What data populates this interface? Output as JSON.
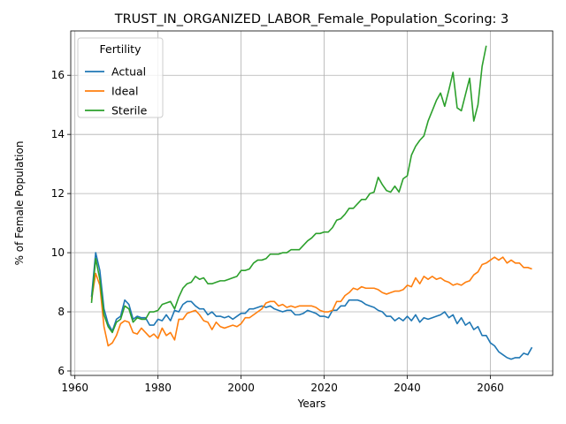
{
  "chart_data": {
    "type": "line",
    "title": "TRUST_IN_ORGANIZED_LABOR_Female_Population_Scoring: 3",
    "xlabel": "Years",
    "ylabel": "% of Female Population",
    "xlim": [
      1959,
      2075
    ],
    "ylim": [
      5.85,
      17.5
    ],
    "xticks": [
      1960,
      1980,
      2000,
      2020,
      2040,
      2060
    ],
    "yticks": [
      6,
      8,
      10,
      12,
      14,
      16
    ],
    "grid": true,
    "legend": {
      "title": "Fertility",
      "placement": "top-left"
    },
    "series": [
      {
        "name": "Actual",
        "color": "#1f77b4",
        "points": [
          [
            1964,
            8.5
          ],
          [
            1965,
            10.0
          ],
          [
            1966,
            9.4
          ],
          [
            1967,
            8.1
          ],
          [
            1968,
            7.6
          ],
          [
            1969,
            7.35
          ],
          [
            1970,
            7.75
          ],
          [
            1971,
            7.85
          ],
          [
            1972,
            8.4
          ],
          [
            1973,
            8.25
          ],
          [
            1974,
            7.75
          ],
          [
            1975,
            7.85
          ],
          [
            1976,
            7.8
          ],
          [
            1977,
            7.8
          ],
          [
            1978,
            7.55
          ],
          [
            1979,
            7.55
          ],
          [
            1980,
            7.75
          ],
          [
            1981,
            7.7
          ],
          [
            1982,
            7.9
          ],
          [
            1983,
            7.7
          ],
          [
            1984,
            8.05
          ],
          [
            1985,
            8.0
          ],
          [
            1986,
            8.25
          ],
          [
            1987,
            8.35
          ],
          [
            1988,
            8.35
          ],
          [
            1989,
            8.2
          ],
          [
            1990,
            8.1
          ],
          [
            1991,
            8.1
          ],
          [
            1992,
            7.9
          ],
          [
            1993,
            8.0
          ],
          [
            1994,
            7.85
          ],
          [
            1995,
            7.85
          ],
          [
            1996,
            7.8
          ],
          [
            1997,
            7.85
          ],
          [
            1998,
            7.75
          ],
          [
            1999,
            7.85
          ],
          [
            2000,
            7.95
          ],
          [
            2001,
            7.95
          ],
          [
            2002,
            8.1
          ],
          [
            2003,
            8.1
          ],
          [
            2004,
            8.15
          ],
          [
            2005,
            8.2
          ],
          [
            2006,
            8.15
          ],
          [
            2007,
            8.2
          ],
          [
            2008,
            8.1
          ],
          [
            2009,
            8.05
          ],
          [
            2010,
            8.0
          ],
          [
            2011,
            8.05
          ],
          [
            2012,
            8.05
          ],
          [
            2013,
            7.9
          ],
          [
            2014,
            7.9
          ],
          [
            2015,
            7.95
          ],
          [
            2016,
            8.05
          ],
          [
            2017,
            8.0
          ],
          [
            2018,
            7.95
          ],
          [
            2019,
            7.85
          ],
          [
            2020,
            7.85
          ],
          [
            2021,
            7.8
          ],
          [
            2022,
            8.05
          ],
          [
            2023,
            8.05
          ],
          [
            2024,
            8.2
          ],
          [
            2025,
            8.2
          ],
          [
            2026,
            8.4
          ],
          [
            2027,
            8.4
          ],
          [
            2028,
            8.4
          ],
          [
            2029,
            8.35
          ],
          [
            2030,
            8.25
          ],
          [
            2031,
            8.2
          ],
          [
            2032,
            8.15
          ],
          [
            2033,
            8.05
          ],
          [
            2034,
            8.0
          ],
          [
            2035,
            7.85
          ],
          [
            2036,
            7.85
          ],
          [
            2037,
            7.7
          ],
          [
            2038,
            7.8
          ],
          [
            2039,
            7.7
          ],
          [
            2040,
            7.85
          ],
          [
            2041,
            7.7
          ],
          [
            2042,
            7.9
          ],
          [
            2043,
            7.65
          ],
          [
            2044,
            7.8
          ],
          [
            2045,
            7.75
          ],
          [
            2046,
            7.8
          ],
          [
            2047,
            7.85
          ],
          [
            2048,
            7.9
          ],
          [
            2049,
            8.0
          ],
          [
            2050,
            7.8
          ],
          [
            2051,
            7.9
          ],
          [
            2052,
            7.6
          ],
          [
            2053,
            7.8
          ],
          [
            2054,
            7.55
          ],
          [
            2055,
            7.65
          ],
          [
            2056,
            7.4
          ],
          [
            2057,
            7.5
          ],
          [
            2058,
            7.2
          ],
          [
            2059,
            7.2
          ],
          [
            2060,
            6.95
          ],
          [
            2061,
            6.85
          ],
          [
            2062,
            6.65
          ],
          [
            2063,
            6.55
          ],
          [
            2064,
            6.45
          ],
          [
            2065,
            6.4
          ],
          [
            2066,
            6.45
          ],
          [
            2067,
            6.45
          ],
          [
            2068,
            6.6
          ],
          [
            2069,
            6.55
          ],
          [
            2070,
            6.8
          ]
        ]
      },
      {
        "name": "Ideal",
        "color": "#ff7f0e",
        "points": [
          [
            1964,
            8.4
          ],
          [
            1965,
            9.3
          ],
          [
            1966,
            8.9
          ],
          [
            1967,
            7.5
          ],
          [
            1968,
            6.85
          ],
          [
            1969,
            6.95
          ],
          [
            1970,
            7.2
          ],
          [
            1971,
            7.6
          ],
          [
            1972,
            7.7
          ],
          [
            1973,
            7.65
          ],
          [
            1974,
            7.3
          ],
          [
            1975,
            7.25
          ],
          [
            1976,
            7.45
          ],
          [
            1977,
            7.3
          ],
          [
            1978,
            7.15
          ],
          [
            1979,
            7.25
          ],
          [
            1980,
            7.1
          ],
          [
            1981,
            7.45
          ],
          [
            1982,
            7.2
          ],
          [
            1983,
            7.3
          ],
          [
            1984,
            7.05
          ],
          [
            1985,
            7.75
          ],
          [
            1986,
            7.75
          ],
          [
            1987,
            7.95
          ],
          [
            1988,
            8.0
          ],
          [
            1989,
            8.05
          ],
          [
            1990,
            7.9
          ],
          [
            1991,
            7.7
          ],
          [
            1992,
            7.65
          ],
          [
            1993,
            7.4
          ],
          [
            1994,
            7.65
          ],
          [
            1995,
            7.5
          ],
          [
            1996,
            7.45
          ],
          [
            1997,
            7.5
          ],
          [
            1998,
            7.55
          ],
          [
            1999,
            7.5
          ],
          [
            2000,
            7.6
          ],
          [
            2001,
            7.8
          ],
          [
            2002,
            7.8
          ],
          [
            2003,
            7.9
          ],
          [
            2004,
            8.0
          ],
          [
            2005,
            8.1
          ],
          [
            2006,
            8.3
          ],
          [
            2007,
            8.35
          ],
          [
            2008,
            8.35
          ],
          [
            2009,
            8.2
          ],
          [
            2010,
            8.25
          ],
          [
            2011,
            8.15
          ],
          [
            2012,
            8.2
          ],
          [
            2013,
            8.15
          ],
          [
            2014,
            8.2
          ],
          [
            2015,
            8.2
          ],
          [
            2016,
            8.2
          ],
          [
            2017,
            8.2
          ],
          [
            2018,
            8.15
          ],
          [
            2019,
            8.05
          ],
          [
            2020,
            8.0
          ],
          [
            2021,
            8.0
          ],
          [
            2022,
            8.05
          ],
          [
            2023,
            8.35
          ],
          [
            2024,
            8.35
          ],
          [
            2025,
            8.55
          ],
          [
            2026,
            8.65
          ],
          [
            2027,
            8.8
          ],
          [
            2028,
            8.75
          ],
          [
            2029,
            8.85
          ],
          [
            2030,
            8.8
          ],
          [
            2031,
            8.8
          ],
          [
            2032,
            8.8
          ],
          [
            2033,
            8.75
          ],
          [
            2034,
            8.65
          ],
          [
            2035,
            8.6
          ],
          [
            2036,
            8.65
          ],
          [
            2037,
            8.7
          ],
          [
            2038,
            8.7
          ],
          [
            2039,
            8.75
          ],
          [
            2040,
            8.9
          ],
          [
            2041,
            8.85
          ],
          [
            2042,
            9.15
          ],
          [
            2043,
            8.95
          ],
          [
            2044,
            9.2
          ],
          [
            2045,
            9.1
          ],
          [
            2046,
            9.2
          ],
          [
            2047,
            9.1
          ],
          [
            2048,
            9.15
          ],
          [
            2049,
            9.05
          ],
          [
            2050,
            9.0
          ],
          [
            2051,
            8.9
          ],
          [
            2052,
            8.95
          ],
          [
            2053,
            8.9
          ],
          [
            2054,
            9.0
          ],
          [
            2055,
            9.05
          ],
          [
            2056,
            9.25
          ],
          [
            2057,
            9.35
          ],
          [
            2058,
            9.6
          ],
          [
            2059,
            9.65
          ],
          [
            2060,
            9.75
          ],
          [
            2061,
            9.85
          ],
          [
            2062,
            9.75
          ],
          [
            2063,
            9.85
          ],
          [
            2064,
            9.65
          ],
          [
            2065,
            9.75
          ],
          [
            2066,
            9.65
          ],
          [
            2067,
            9.65
          ],
          [
            2068,
            9.5
          ],
          [
            2069,
            9.5
          ],
          [
            2070,
            9.45
          ]
        ]
      },
      {
        "name": "Sterile",
        "color": "#2ca02c",
        "points": [
          [
            1964,
            8.3
          ],
          [
            1965,
            9.8
          ],
          [
            1966,
            9.1
          ],
          [
            1967,
            7.9
          ],
          [
            1968,
            7.5
          ],
          [
            1969,
            7.3
          ],
          [
            1970,
            7.65
          ],
          [
            1971,
            7.75
          ],
          [
            1972,
            8.2
          ],
          [
            1973,
            8.1
          ],
          [
            1974,
            7.65
          ],
          [
            1975,
            7.8
          ],
          [
            1976,
            7.75
          ],
          [
            1977,
            7.75
          ],
          [
            1978,
            8.0
          ],
          [
            1979,
            8.0
          ],
          [
            1980,
            8.05
          ],
          [
            1981,
            8.25
          ],
          [
            1982,
            8.3
          ],
          [
            1983,
            8.35
          ],
          [
            1984,
            8.1
          ],
          [
            1985,
            8.5
          ],
          [
            1986,
            8.8
          ],
          [
            1987,
            8.95
          ],
          [
            1988,
            9.0
          ],
          [
            1989,
            9.2
          ],
          [
            1990,
            9.1
          ],
          [
            1991,
            9.15
          ],
          [
            1992,
            8.95
          ],
          [
            1993,
            8.95
          ],
          [
            1994,
            9.0
          ],
          [
            1995,
            9.05
          ],
          [
            1996,
            9.05
          ],
          [
            1997,
            9.1
          ],
          [
            1998,
            9.15
          ],
          [
            1999,
            9.2
          ],
          [
            2000,
            9.4
          ],
          [
            2001,
            9.4
          ],
          [
            2002,
            9.45
          ],
          [
            2003,
            9.65
          ],
          [
            2004,
            9.75
          ],
          [
            2005,
            9.75
          ],
          [
            2006,
            9.8
          ],
          [
            2007,
            9.95
          ],
          [
            2008,
            9.95
          ],
          [
            2009,
            9.95
          ],
          [
            2010,
            10.0
          ],
          [
            2011,
            10.0
          ],
          [
            2012,
            10.1
          ],
          [
            2013,
            10.1
          ],
          [
            2014,
            10.1
          ],
          [
            2015,
            10.25
          ],
          [
            2016,
            10.4
          ],
          [
            2017,
            10.5
          ],
          [
            2018,
            10.65
          ],
          [
            2019,
            10.65
          ],
          [
            2020,
            10.7
          ],
          [
            2021,
            10.7
          ],
          [
            2022,
            10.85
          ],
          [
            2023,
            11.1
          ],
          [
            2024,
            11.15
          ],
          [
            2025,
            11.3
          ],
          [
            2026,
            11.5
          ],
          [
            2027,
            11.5
          ],
          [
            2028,
            11.65
          ],
          [
            2029,
            11.8
          ],
          [
            2030,
            11.8
          ],
          [
            2031,
            12.0
          ],
          [
            2032,
            12.05
          ],
          [
            2033,
            12.55
          ],
          [
            2034,
            12.3
          ],
          [
            2035,
            12.1
          ],
          [
            2036,
            12.05
          ],
          [
            2037,
            12.25
          ],
          [
            2038,
            12.05
          ],
          [
            2039,
            12.5
          ],
          [
            2040,
            12.6
          ],
          [
            2041,
            13.3
          ],
          [
            2042,
            13.6
          ],
          [
            2043,
            13.8
          ],
          [
            2044,
            13.95
          ],
          [
            2045,
            14.45
          ],
          [
            2046,
            14.8
          ],
          [
            2047,
            15.15
          ],
          [
            2048,
            15.4
          ],
          [
            2049,
            14.95
          ],
          [
            2050,
            15.5
          ],
          [
            2051,
            16.1
          ],
          [
            2052,
            14.9
          ],
          [
            2053,
            14.8
          ],
          [
            2054,
            15.35
          ],
          [
            2055,
            15.9
          ],
          [
            2056,
            14.45
          ],
          [
            2057,
            15.0
          ],
          [
            2058,
            16.3
          ],
          [
            2059,
            17.0
          ]
        ]
      }
    ]
  }
}
